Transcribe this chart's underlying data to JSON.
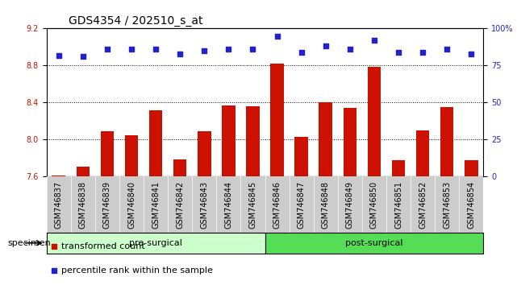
{
  "title": "GDS4354 / 202510_s_at",
  "categories": [
    "GSM746837",
    "GSM746838",
    "GSM746839",
    "GSM746840",
    "GSM746841",
    "GSM746842",
    "GSM746843",
    "GSM746844",
    "GSM746845",
    "GSM746846",
    "GSM746847",
    "GSM746848",
    "GSM746849",
    "GSM746850",
    "GSM746851",
    "GSM746852",
    "GSM746853",
    "GSM746854"
  ],
  "bar_values": [
    7.61,
    7.71,
    8.09,
    8.05,
    8.32,
    7.79,
    8.09,
    8.37,
    8.36,
    8.82,
    8.03,
    8.4,
    8.34,
    8.79,
    7.78,
    8.1,
    8.35,
    7.78
  ],
  "percentile_values": [
    82,
    81,
    86,
    86,
    86,
    83,
    85,
    86,
    86,
    95,
    84,
    88,
    86,
    92,
    84,
    84,
    86,
    83
  ],
  "bar_color": "#cc1100",
  "dot_color": "#2222cc",
  "ylim_left": [
    7.6,
    9.2
  ],
  "ylim_right": [
    0,
    100
  ],
  "yticks_left": [
    7.6,
    8.0,
    8.4,
    8.8,
    9.2
  ],
  "yticks_right": [
    0,
    25,
    50,
    75,
    100
  ],
  "ytick_labels_right": [
    "0",
    "25",
    "50",
    "75",
    "100%"
  ],
  "grid_lines": [
    8.0,
    8.4,
    8.8
  ],
  "pre_surgical_count": 9,
  "groups": [
    {
      "label": "pre-surgical",
      "start": 0,
      "end": 9,
      "color": "#ccffcc"
    },
    {
      "label": "post-surgical",
      "start": 9,
      "end": 18,
      "color": "#55dd55"
    }
  ],
  "specimen_label": "specimen",
  "legend_items": [
    {
      "color": "#cc1100",
      "marker": "s",
      "label": "transformed count"
    },
    {
      "color": "#2222cc",
      "marker": "s",
      "label": "percentile rank within the sample"
    }
  ],
  "bar_width": 0.55,
  "background_color": "#ffffff",
  "title_fontsize": 10,
  "axis_tick_fontsize": 7,
  "xlabel_fontsize": 7,
  "legend_fontsize": 8
}
